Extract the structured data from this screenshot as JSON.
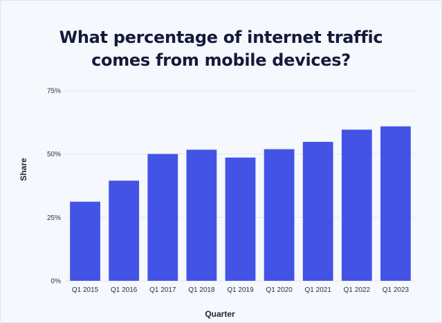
{
  "colors": {
    "bar": "#4353e6",
    "grid": "#e3e7ee",
    "background": "#f5f8fc",
    "title": "#151a3b"
  },
  "chart_data": {
    "type": "bar",
    "title_lines": [
      "What percentage of internet traffic",
      "comes from mobile devices?"
    ],
    "xlabel": "Quarter",
    "ylabel": "Share",
    "categories": [
      "Q1 2015",
      "Q1 2016",
      "Q1 2017",
      "Q1 2018",
      "Q1 2019",
      "Q1 2020",
      "Q1 2021",
      "Q1 2022",
      "Q1 2023"
    ],
    "values": [
      31.2,
      39.5,
      50.0,
      51.7,
      48.6,
      51.9,
      54.8,
      59.6,
      60.9
    ],
    "ylim": [
      0,
      75
    ],
    "yticks": [
      0,
      25,
      50,
      75
    ],
    "ytick_labels": [
      "0%",
      "25%",
      "50%",
      "75%"
    ],
    "grid": true,
    "legend": "none"
  }
}
